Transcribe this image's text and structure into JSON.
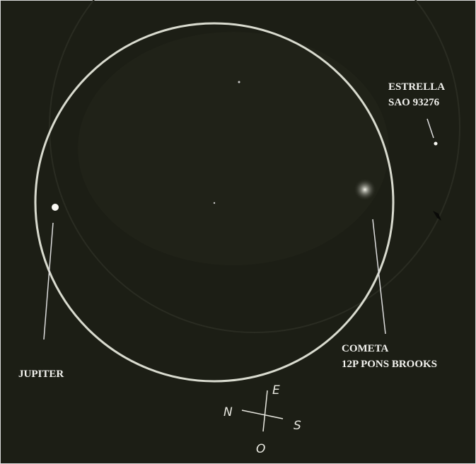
{
  "annotations": [
    {
      "lines": [
        "ESTRELLA",
        "SAO 93276"
      ]
    },
    {
      "lines": [
        "JUPITER"
      ]
    },
    {
      "lines": [
        "COMETA",
        "12P PONS BROOKS"
      ]
    }
  ],
  "compass": {
    "east": "E",
    "north": "N",
    "south": "S",
    "west": "O"
  }
}
